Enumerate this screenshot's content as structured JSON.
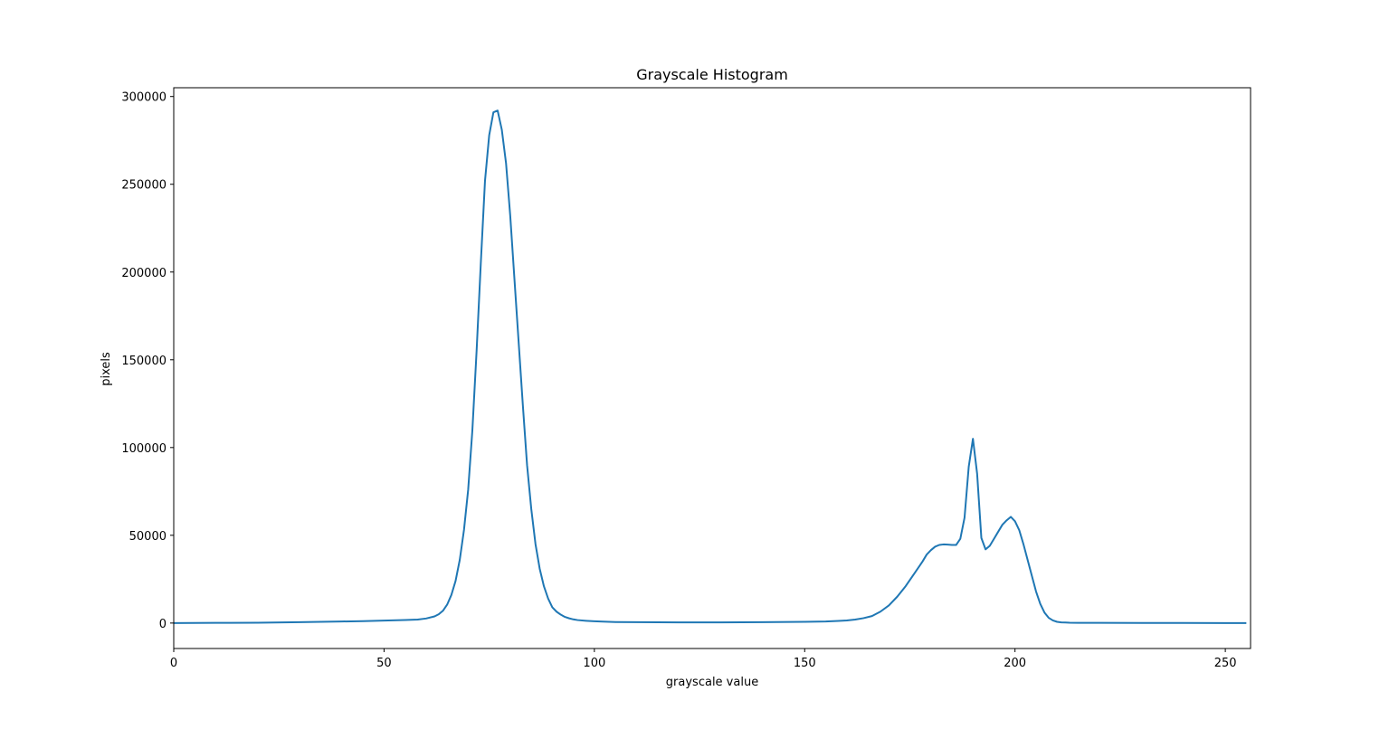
{
  "chart_data": {
    "type": "line",
    "title": "Grayscale Histogram",
    "xlabel": "grayscale value",
    "ylabel": "pixels",
    "xlim": [
      0,
      256
    ],
    "ylim": [
      -14500,
      305000
    ],
    "xticks": [
      0,
      50,
      100,
      150,
      200,
      250
    ],
    "yticks": [
      0,
      50000,
      100000,
      150000,
      200000,
      250000,
      300000
    ],
    "grid": false,
    "legend": "none",
    "series": [
      {
        "color": "#1f77b4",
        "x": [
          0,
          10,
          20,
          30,
          40,
          45,
          50,
          55,
          58,
          60,
          62,
          63,
          64,
          65,
          66,
          67,
          68,
          69,
          70,
          71,
          72,
          73,
          74,
          75,
          76,
          77,
          78,
          79,
          80,
          81,
          82,
          83,
          84,
          85,
          86,
          87,
          88,
          89,
          90,
          91,
          92,
          93,
          94,
          95,
          96,
          98,
          100,
          102,
          105,
          110,
          120,
          130,
          140,
          150,
          155,
          158,
          160,
          162,
          164,
          166,
          168,
          170,
          172,
          174,
          176,
          178,
          179,
          180,
          181,
          182,
          183,
          184,
          185,
          186,
          187,
          188,
          189,
          190,
          191,
          192,
          193,
          194,
          195,
          196,
          197,
          198,
          199,
          200,
          201,
          202,
          203,
          204,
          205,
          206,
          207,
          208,
          209,
          210,
          211,
          212,
          213,
          215,
          220,
          230,
          240,
          250,
          255
        ],
        "y": [
          0,
          100,
          200,
          500,
          900,
          1100,
          1400,
          1700,
          2000,
          2600,
          3800,
          5000,
          7000,
          10500,
          16000,
          24000,
          36000,
          53000,
          76000,
          110000,
          155000,
          205000,
          252000,
          278000,
          291000,
          292000,
          281000,
          262000,
          232000,
          196000,
          160000,
          124000,
          90000,
          65000,
          45000,
          31000,
          21000,
          14000,
          9000,
          6500,
          4800,
          3500,
          2700,
          2100,
          1700,
          1300,
          1000,
          800,
          600,
          500,
          400,
          400,
          500,
          700,
          900,
          1200,
          1500,
          2000,
          2800,
          4000,
          6500,
          10000,
          15000,
          21000,
          28000,
          35000,
          39000,
          41500,
          43500,
          44500,
          44800,
          44700,
          44500,
          44500,
          48000,
          60000,
          89000,
          105000,
          85000,
          48500,
          42000,
          44000,
          48000,
          52000,
          56000,
          58500,
          60500,
          58000,
          53000,
          45000,
          36000,
          27000,
          18000,
          11000,
          6000,
          3000,
          1500,
          700,
          400,
          300,
          200,
          150,
          100,
          50,
          30,
          20,
          10
        ]
      }
    ]
  }
}
